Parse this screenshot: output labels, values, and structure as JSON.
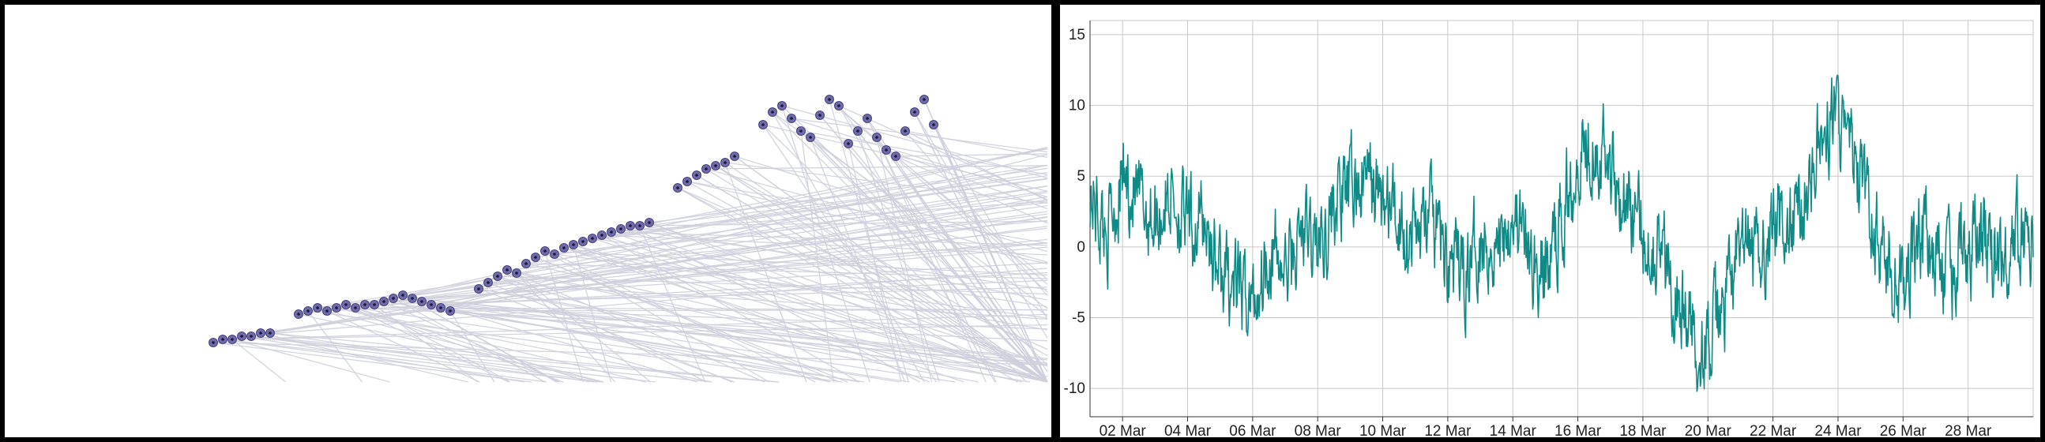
{
  "colors": {
    "node_fill": "#6f6aa8",
    "node_stroke": "#4a4684",
    "node_dot": "#1b1a3a",
    "edge": "#cfd0dc",
    "line": "#108a86",
    "grid": "#c8c8c8",
    "axis": "#333333"
  },
  "chart_data": [
    {
      "type": "scatter",
      "description_free": true,
      "clusters": [
        {
          "x": [
            0.12,
            0.13,
            0.14,
            0.15,
            0.16,
            0.17,
            0.18
          ],
          "y": [
            0.13,
            0.14,
            0.14,
            0.15,
            0.15,
            0.16,
            0.16
          ]
        },
        {
          "x": [
            0.21,
            0.22,
            0.23,
            0.24,
            0.25,
            0.26,
            0.27,
            0.28
          ],
          "y": [
            0.22,
            0.23,
            0.24,
            0.23,
            0.24,
            0.25,
            0.24,
            0.25
          ]
        },
        {
          "x": [
            0.29,
            0.3,
            0.31,
            0.32,
            0.33,
            0.34,
            0.35,
            0.36,
            0.37
          ],
          "y": [
            0.25,
            0.26,
            0.27,
            0.28,
            0.27,
            0.26,
            0.25,
            0.24,
            0.23
          ]
        },
        {
          "x": [
            0.4,
            0.41,
            0.42,
            0.43,
            0.44,
            0.45,
            0.46,
            0.47,
            0.48,
            0.49,
            0.5
          ],
          "y": [
            0.3,
            0.32,
            0.34,
            0.36,
            0.35,
            0.38,
            0.4,
            0.42,
            0.41,
            0.43,
            0.44
          ]
        },
        {
          "x": [
            0.51,
            0.52,
            0.53,
            0.54,
            0.55,
            0.56,
            0.57,
            0.58
          ],
          "y": [
            0.45,
            0.46,
            0.47,
            0.48,
            0.49,
            0.5,
            0.5,
            0.51
          ]
        },
        {
          "x": [
            0.61,
            0.62,
            0.63,
            0.64,
            0.65,
            0.66,
            0.67
          ],
          "y": [
            0.62,
            0.64,
            0.66,
            0.68,
            0.69,
            0.7,
            0.72
          ]
        },
        {
          "x": [
            0.7,
            0.71,
            0.72,
            0.73,
            0.74,
            0.75,
            0.76,
            0.77,
            0.78,
            0.79,
            0.8,
            0.81,
            0.82,
            0.83,
            0.84,
            0.85,
            0.86,
            0.87,
            0.88
          ],
          "y": [
            0.82,
            0.86,
            0.88,
            0.84,
            0.8,
            0.78,
            0.85,
            0.9,
            0.88,
            0.76,
            0.8,
            0.84,
            0.78,
            0.74,
            0.72,
            0.8,
            0.86,
            0.9,
            0.82
          ]
        }
      ]
    },
    {
      "type": "line",
      "xlabel": "",
      "ylabel": "",
      "ylim": [
        -12,
        16
      ],
      "x_ticks": [
        "02 Mar",
        "04 Mar",
        "06 Mar",
        "08 Mar",
        "10 Mar",
        "12 Mar",
        "14 Mar",
        "16 Mar",
        "18 Mar",
        "20 Mar",
        "22 Mar",
        "24 Mar",
        "26 Mar",
        "28 Mar"
      ],
      "y_ticks": [
        15,
        10,
        5,
        0,
        -5,
        -10
      ],
      "x_range_days": [
        1.0,
        30.0
      ],
      "series": [
        {
          "anchors_day": [
            1.0,
            1.5,
            2.0,
            2.5,
            3.0,
            3.5,
            4.0,
            4.5,
            5.0,
            5.5,
            6.0,
            6.5,
            7.0,
            7.5,
            8.0,
            8.5,
            9.0,
            9.5,
            10.0,
            10.5,
            11.0,
            11.5,
            12.0,
            12.5,
            13.0,
            13.5,
            14.0,
            14.5,
            15.0,
            15.5,
            16.0,
            16.5,
            17.0,
            17.5,
            18.0,
            18.5,
            19.0,
            19.5,
            20.0,
            20.5,
            21.0,
            21.5,
            22.0,
            22.5,
            23.0,
            23.5,
            24.0,
            24.5,
            25.0,
            25.5,
            26.0,
            26.5,
            27.0,
            27.5,
            28.0,
            28.5,
            29.0,
            29.5,
            30.0
          ],
          "anchors_value": [
            4,
            1,
            5,
            3,
            2,
            4,
            1,
            2,
            -2,
            -3,
            -4,
            0,
            -2,
            1,
            0,
            3,
            4,
            5,
            3,
            2,
            1,
            2,
            -1,
            -2,
            1,
            0,
            3,
            -1,
            -2,
            2,
            7,
            8,
            6,
            3,
            1,
            0,
            -3,
            -6,
            -7,
            -4,
            0,
            -1,
            2,
            1,
            4,
            8,
            9,
            6,
            2,
            -1,
            -3,
            1,
            -1,
            -2,
            0,
            1,
            -2,
            1,
            1
          ]
        }
      ]
    }
  ]
}
